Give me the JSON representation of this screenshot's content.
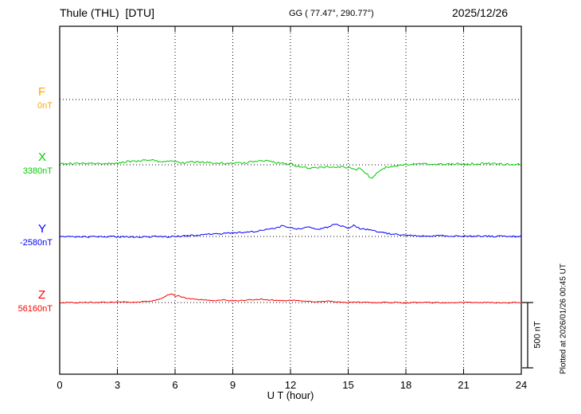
{
  "header": {
    "station_title": "Thule (THL)  [DTU]",
    "gg_coords": "GG ( 77.47°, 290.77°)",
    "date": "2025/12/26"
  },
  "axis": {
    "xlabel": "U T (hour)"
  },
  "scale_bar": {
    "label": "500 nT",
    "nT": 500
  },
  "side_note": "Plotted at 2026/01/26 00:45 UT",
  "chart_data": {
    "type": "line",
    "title": "Thule (THL) [DTU] magnetogram 2025/12/26",
    "xlabel": "U T (hour)",
    "xlim": [
      0,
      24
    ],
    "x_ticks": [
      0,
      3,
      6,
      9,
      12,
      15,
      18,
      21,
      24
    ],
    "grid": "dotted vertical gridlines every 3 h and dotted horizontal baseline per channel",
    "scale_nT": 500,
    "legend_position": "left margin channel labels",
    "series": [
      {
        "name": "F",
        "baseline_label": "0nT",
        "color": "#FFA500",
        "plotted": false,
        "noise_nT": 0,
        "x": [
          0,
          24
        ],
        "y": [
          0,
          0
        ]
      },
      {
        "name": "X",
        "baseline_label": "3380nT",
        "color": "#00CC00",
        "plotted": true,
        "noise_nT": 8,
        "x": [
          0,
          0.5,
          1,
          1.5,
          2,
          2.5,
          3,
          3.3,
          3.6,
          4,
          4.3,
          4.6,
          5,
          5.3,
          5.6,
          6,
          6.5,
          7,
          7.5,
          8,
          8.5,
          9,
          9.5,
          10,
          10.3,
          10.6,
          11,
          11.5,
          12,
          12.3,
          12.6,
          13,
          13.3,
          13.6,
          14,
          14.3,
          14.6,
          15,
          15.3,
          15.6,
          16,
          16.2,
          16.4,
          16.6,
          17,
          17.5,
          18,
          18.5,
          19,
          19.5,
          20,
          20.5,
          21,
          21.5,
          22,
          22.5,
          23,
          23.5,
          24
        ],
        "y": [
          8,
          10,
          12,
          9,
          8,
          10,
          12,
          20,
          28,
          24,
          32,
          38,
          30,
          26,
          28,
          22,
          16,
          20,
          17,
          14,
          12,
          10,
          14,
          24,
          28,
          30,
          22,
          14,
          6,
          -8,
          -18,
          -28,
          -24,
          -20,
          -12,
          -18,
          -14,
          -22,
          -35,
          -30,
          -70,
          -115,
          -80,
          -45,
          -18,
          -6,
          0,
          4,
          6,
          4,
          3,
          5,
          6,
          8,
          9,
          7,
          5,
          6,
          6
        ]
      },
      {
        "name": "Y",
        "baseline_label": "-2580nT",
        "color": "#0000FF",
        "plotted": true,
        "noise_nT": 6,
        "x": [
          0,
          0.5,
          1,
          1.5,
          2,
          2.5,
          3,
          3.5,
          4,
          4.5,
          5,
          5.5,
          6,
          6.5,
          7,
          7.5,
          8,
          8.5,
          9,
          9.5,
          10,
          10.5,
          11,
          11.3,
          11.6,
          12,
          12.3,
          12.6,
          13,
          13.3,
          13.6,
          14,
          14.3,
          14.6,
          15,
          15.3,
          15.6,
          16,
          16.5,
          17,
          17.5,
          18,
          18.5,
          19,
          19.5,
          20,
          20.5,
          21,
          21.5,
          22,
          22.5,
          23,
          23.5,
          24
        ],
        "y": [
          0,
          -2,
          0,
          -3,
          -2,
          0,
          -4,
          -2,
          -5,
          -3,
          -2,
          -4,
          0,
          4,
          8,
          14,
          18,
          22,
          26,
          30,
          36,
          46,
          58,
          70,
          80,
          66,
          58,
          64,
          72,
          62,
          58,
          72,
          95,
          82,
          66,
          85,
          60,
          52,
          40,
          24,
          14,
          10,
          7,
          5,
          6,
          4,
          2,
          0,
          2,
          3,
          1,
          0,
          1,
          0
        ]
      },
      {
        "name": "Z",
        "baseline_label": "56160nT",
        "color": "#FF0000",
        "plotted": true,
        "noise_nT": 4,
        "x": [
          0,
          0.5,
          1,
          1.5,
          2,
          2.5,
          3,
          3.5,
          4,
          4.5,
          5,
          5.3,
          5.6,
          5.8,
          6,
          6.2,
          6.4,
          6.6,
          7,
          7.5,
          8,
          8.5,
          9,
          9.5,
          10,
          10.5,
          11,
          11.5,
          12,
          12.5,
          13,
          13.5,
          14,
          14.5,
          15,
          15.5,
          16,
          16.5,
          17,
          17.5,
          18,
          18.5,
          19,
          19.5,
          20,
          20.5,
          21,
          21.5,
          22,
          22.5,
          23,
          23.5,
          24
        ],
        "y": [
          0,
          1,
          0,
          2,
          1,
          0,
          2,
          3,
          4,
          8,
          18,
          30,
          55,
          72,
          48,
          52,
          40,
          32,
          24,
          20,
          16,
          20,
          15,
          17,
          20,
          26,
          20,
          14,
          18,
          14,
          10,
          6,
          10,
          5,
          2,
          5,
          2,
          0,
          2,
          0,
          -2,
          0,
          1,
          0,
          -2,
          0,
          1,
          0,
          1,
          0,
          -2,
          0,
          0
        ]
      }
    ]
  }
}
